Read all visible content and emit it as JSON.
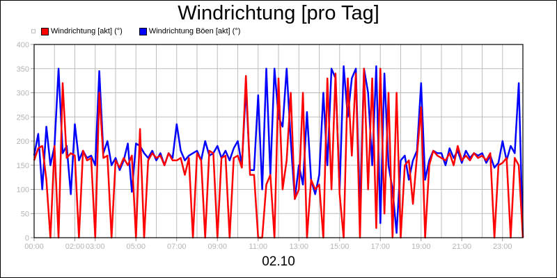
{
  "chart_data": {
    "type": "line",
    "title": "Windrichtung [pro Tag]",
    "xlabel": "02.10",
    "ylabel": "",
    "xlim": [
      0,
      24
    ],
    "ylim": [
      0,
      400
    ],
    "grid": true,
    "legend_position": "top-left",
    "yticks": [
      "0",
      "50",
      "100",
      "150",
      "200",
      "250",
      "300",
      "350",
      "400"
    ],
    "xticks": [
      {
        "h": 0,
        "label": "00:00"
      },
      {
        "h": 2,
        "label": "02:00"
      },
      {
        "h": 3,
        "label": "03:00"
      },
      {
        "h": 5,
        "label": "05:00"
      },
      {
        "h": 7,
        "label": "07:00"
      },
      {
        "h": 9,
        "label": "09:00"
      },
      {
        "h": 11,
        "label": "11:00"
      },
      {
        "h": 13,
        "label": "13:00"
      },
      {
        "h": 15,
        "label": "15:00"
      },
      {
        "h": 17,
        "label": "17:00"
      },
      {
        "h": 19,
        "label": "19:00"
      },
      {
        "h": 21,
        "label": "21:00"
      },
      {
        "h": 23,
        "label": "23:00"
      }
    ],
    "x_step_hours": 0.2,
    "series": [
      {
        "name": "Windrichtung Böen [akt] (°)",
        "color": "#0000ff",
        "values": [
          170,
          215,
          100,
          230,
          150,
          190,
          350,
          175,
          190,
          90,
          235,
          160,
          180,
          165,
          170,
          150,
          345,
          175,
          200,
          150,
          165,
          140,
          160,
          195,
          95,
          195,
          190,
          175,
          165,
          180,
          160,
          175,
          150,
          175,
          165,
          235,
          180,
          160,
          170,
          175,
          180,
          160,
          200,
          170,
          175,
          190,
          165,
          180,
          160,
          185,
          200,
          150,
          310,
          140,
          140,
          295,
          100,
          350,
          130,
          350,
          250,
          230,
          350,
          200,
          80,
          150,
          110,
          260,
          120,
          90,
          130,
          300,
          150,
          350,
          330,
          100,
          355,
          250,
          330,
          350,
          50,
          350,
          300,
          150,
          355,
          30,
          340,
          150,
          100,
          10,
          160,
          170,
          120,
          160,
          180,
          320,
          120,
          160,
          180,
          175,
          175,
          150,
          185,
          165,
          180,
          155,
          180,
          165,
          175,
          170,
          175,
          155,
          170,
          145,
          155,
          200,
          160,
          190,
          175,
          320,
          0
        ]
      },
      {
        "name": "Windrichtung [akt] (°)",
        "color": "#ff0000",
        "values": [
          160,
          185,
          190,
          120,
          0,
          190,
          0,
          320,
          165,
          175,
          170,
          0,
          180,
          160,
          165,
          0,
          300,
          165,
          170,
          0,
          160,
          145,
          165,
          150,
          170,
          0,
          225,
          0,
          160,
          175,
          165,
          170,
          150,
          175,
          160,
          160,
          165,
          130,
          165,
          0,
          175,
          160,
          0,
          180,
          175,
          0,
          165,
          170,
          0,
          165,
          170,
          145,
          335,
          130,
          130,
          0,
          0,
          110,
          130,
          0,
          330,
          100,
          160,
          300,
          80,
          100,
          300,
          0,
          120,
          100,
          110,
          0,
          330,
          100,
          340,
          90,
          0,
          330,
          170,
          340,
          0,
          350,
          100,
          330,
          20,
          350,
          50,
          300,
          0,
          300,
          0,
          150,
          160,
          70,
          170,
          270,
          0,
          150,
          180,
          170,
          165,
          160,
          175,
          150,
          190,
          160,
          170,
          160,
          175,
          165,
          170,
          160,
          175,
          0,
          150,
          155,
          165,
          0,
          165,
          150,
          0
        ]
      }
    ],
    "legend": [
      {
        "label": "Windrichtung [akt] (°)",
        "color": "#ff0000"
      },
      {
        "label": "Windrichtung Böen [akt] (°)",
        "color": "#0000ff"
      }
    ]
  }
}
